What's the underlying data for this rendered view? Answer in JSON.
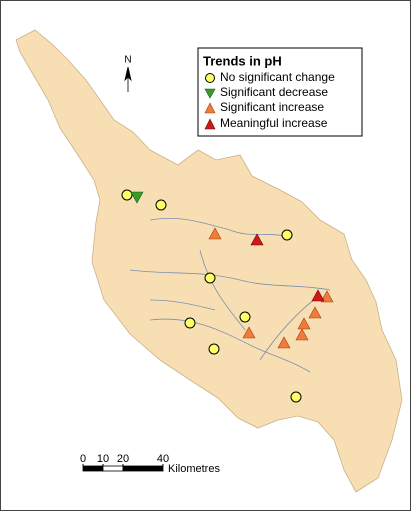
{
  "legend": {
    "title": "Trends in pH",
    "items": [
      "No significant change",
      "Significant decrease",
      "Significant increase",
      "Meaningful increase"
    ]
  },
  "north_arrow": {
    "label": "N"
  },
  "scale_bar": {
    "ticks": [
      0,
      10,
      20,
      40
    ],
    "unit": "Kilometres"
  }
}
